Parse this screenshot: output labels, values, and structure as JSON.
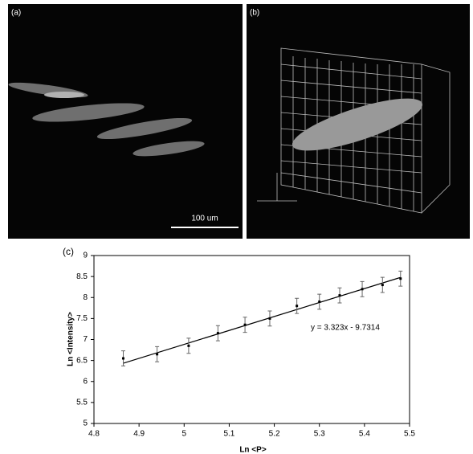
{
  "panels": {
    "a": {
      "label": "(a)",
      "scale_bar": "100 um"
    },
    "b": {
      "label": "(b)"
    }
  },
  "chart_data": {
    "type": "scatter",
    "panel_label": "(c)",
    "x_label": "Ln <P>",
    "y_label": "Ln <Intensity>",
    "series": [
      {
        "color": "#000000",
        "x": [
          4.865,
          4.94,
          5.01,
          5.075,
          5.135,
          5.19,
          5.25,
          5.3,
          5.345,
          5.395,
          5.44,
          5.48
        ],
        "values": [
          6.55,
          6.65,
          6.85,
          7.15,
          7.35,
          7.5,
          7.8,
          7.9,
          8.05,
          8.2,
          8.3,
          8.45
        ],
        "errors": [
          0.18,
          0.18,
          0.18,
          0.18,
          0.18,
          0.18,
          0.18,
          0.18,
          0.18,
          0.18,
          0.18,
          0.18
        ]
      }
    ],
    "trendline": {
      "slope": 3.323,
      "intercept": -9.7314,
      "label": "y = 3.323x - 9.7314"
    },
    "xlim": [
      4.8,
      5.5
    ],
    "xticks": [
      4.8,
      4.9,
      5,
      5.1,
      5.2,
      5.3,
      5.4,
      5.5
    ],
    "ylim": [
      5,
      9
    ],
    "yticks": [
      5,
      5.5,
      6,
      6.5,
      7,
      7.5,
      8,
      8.5,
      9
    ]
  }
}
